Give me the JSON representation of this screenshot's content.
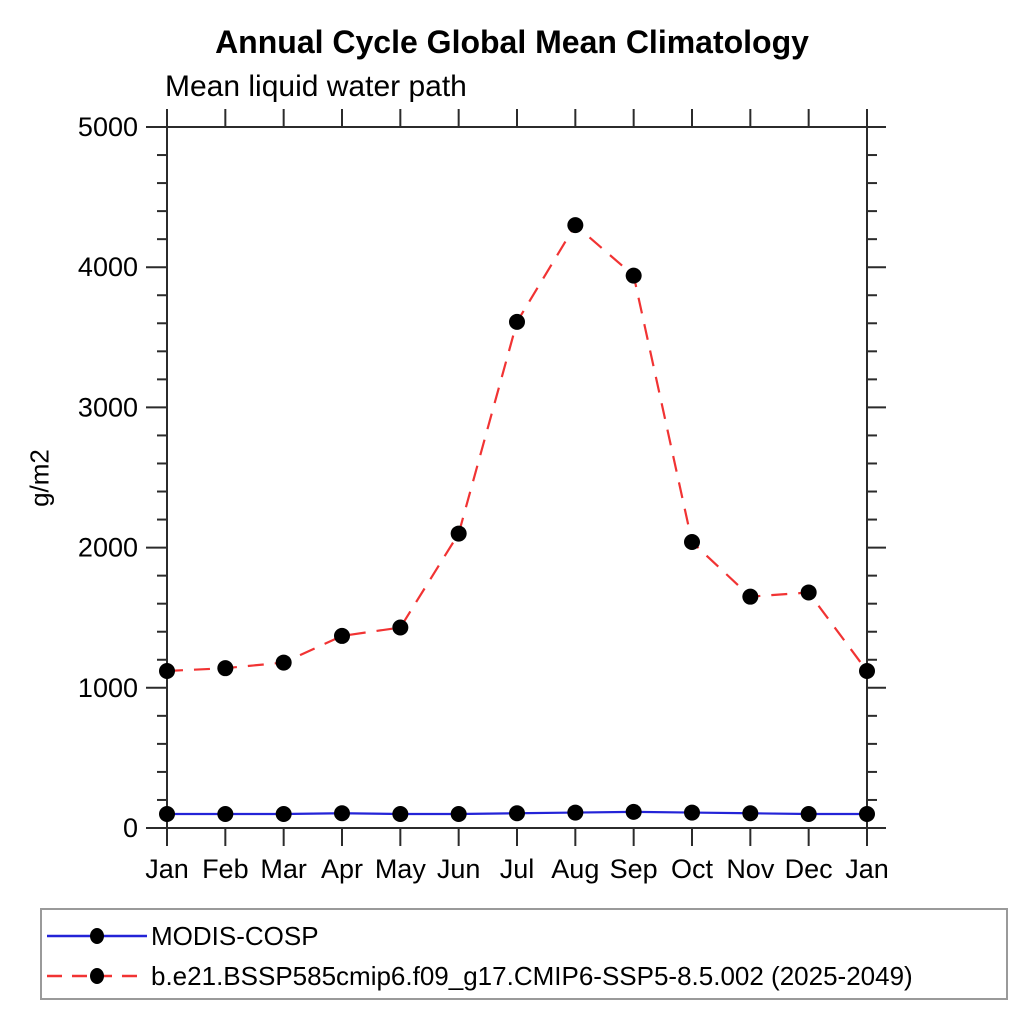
{
  "title": "Annual Cycle Global Mean Climatology",
  "subtitle": "Mean liquid water path",
  "chart_data": {
    "type": "line",
    "title": "Annual Cycle Global Mean Climatology",
    "subtitle": "Mean liquid water path",
    "xlabel": "",
    "ylabel": "g/m2",
    "ylim": [
      0,
      5000
    ],
    "ytick_major_step": 1000,
    "ytick_minor_step": 200,
    "ytick_labels": [
      "0",
      "1000",
      "2000",
      "3000",
      "4000",
      "5000"
    ],
    "categories": [
      "Jan",
      "Feb",
      "Mar",
      "Apr",
      "May",
      "Jun",
      "Jul",
      "Aug",
      "Sep",
      "Oct",
      "Nov",
      "Dec",
      "Jan"
    ],
    "grid": false,
    "legend_position": "bottom",
    "series": [
      {
        "name": "MODIS-COSP",
        "color": "#2323d7",
        "line_style": "solid",
        "marker_color": "#000000",
        "values": [
          100,
          100,
          100,
          105,
          100,
          100,
          105,
          110,
          115,
          110,
          105,
          100,
          100
        ]
      },
      {
        "name": "b.e21.BSSP585cmip6.f09_g17.CMIP6-SSP5-8.5.002 (2025-2049)",
        "color": "#f13333",
        "line_style": "dashed",
        "marker_color": "#000000",
        "values": [
          1120,
          1140,
          1180,
          1370,
          1430,
          2100,
          3610,
          4300,
          3940,
          2040,
          1650,
          1680,
          1120
        ]
      }
    ],
    "frame_color": "#2b2b2b",
    "text_color": "#000000",
    "legend_border_color": "#9a9a9a"
  }
}
